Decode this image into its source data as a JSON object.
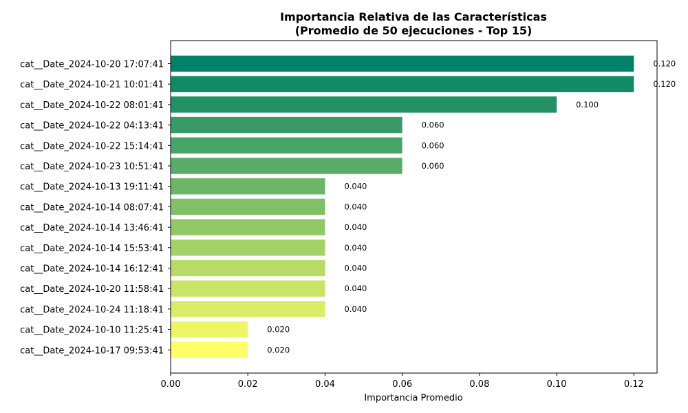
{
  "chart_data": {
    "type": "bar",
    "orientation": "horizontal",
    "title_line1": "Importancia Relativa de las Características",
    "title_line2": "(Promedio de 50 ejecuciones - Top 15)",
    "xlabel": "Importancia Promedio",
    "ylabel": "",
    "xlim": [
      0,
      0.126
    ],
    "xticks": [
      0.0,
      0.02,
      0.04,
      0.06,
      0.08,
      0.1,
      0.12
    ],
    "xtick_labels": [
      "0.00",
      "0.02",
      "0.04",
      "0.06",
      "0.08",
      "0.10",
      "0.12"
    ],
    "grid": false,
    "legend": "none",
    "categories": [
      "cat__Date_2024-10-20 17:07:41",
      "cat__Date_2024-10-21 10:01:41",
      "cat__Date_2024-10-22 08:01:41",
      "cat__Date_2024-10-22 04:13:41",
      "cat__Date_2024-10-22 15:14:41",
      "cat__Date_2024-10-23 10:51:41",
      "cat__Date_2024-10-13 19:11:41",
      "cat__Date_2024-10-14 08:07:41",
      "cat__Date_2024-10-14 13:46:41",
      "cat__Date_2024-10-14 15:53:41",
      "cat__Date_2024-10-14 16:12:41",
      "cat__Date_2024-10-20 11:58:41",
      "cat__Date_2024-10-24 11:18:41",
      "cat__Date_2024-10-10 11:25:41",
      "cat__Date_2024-10-17 09:53:41"
    ],
    "values": [
      0.12,
      0.12,
      0.1,
      0.06,
      0.06,
      0.06,
      0.04,
      0.04,
      0.04,
      0.04,
      0.04,
      0.04,
      0.04,
      0.02,
      0.02
    ],
    "value_labels": [
      "0.120",
      "0.120",
      "0.100",
      "0.060",
      "0.060",
      "0.060",
      "0.040",
      "0.040",
      "0.040",
      "0.040",
      "0.040",
      "0.040",
      "0.040",
      "0.020",
      "0.020"
    ],
    "colors": [
      "#008066",
      "#118b66",
      "#239166",
      "#369b66",
      "#48a466",
      "#5aad66",
      "#6db666",
      "#80c066",
      "#92c966",
      "#a4d266",
      "#b7db66",
      "#c9e466",
      "#dbed66",
      "#eef666",
      "#ffff66"
    ]
  }
}
